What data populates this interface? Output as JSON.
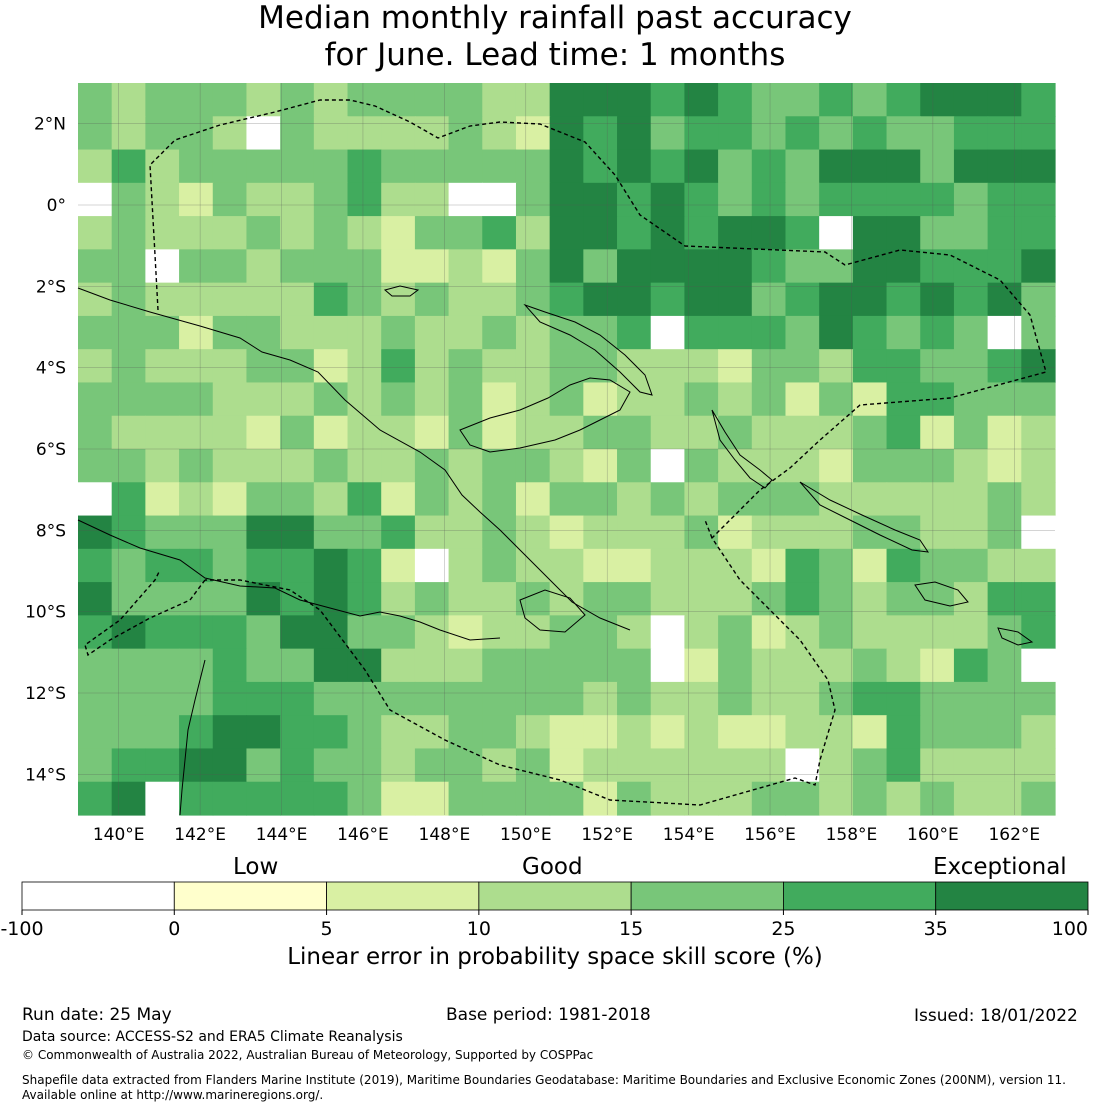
{
  "title": {
    "line1": "Median monthly rainfall past accuracy",
    "line2": "for June. Lead time: 1 months"
  },
  "map": {
    "lon_labels": [
      "140°E",
      "142°E",
      "144°E",
      "146°E",
      "148°E",
      "150°E",
      "152°E",
      "154°E",
      "156°E",
      "158°E",
      "160°E",
      "162°E"
    ],
    "lat_labels": [
      "2°N",
      "0°",
      "2°S",
      "4°S",
      "6°S",
      "8°S",
      "10°S",
      "12°S",
      "14°S"
    ],
    "lon_range": [
      139,
      163
    ],
    "lat_range": [
      -15,
      3
    ]
  },
  "legend": {
    "category_labels": [
      "Low",
      "Good",
      "Exceptional"
    ],
    "bins": [
      {
        "from": -100,
        "to": 0,
        "color": "#ffffff"
      },
      {
        "from": 0,
        "to": 5,
        "color": "#ffffcc"
      },
      {
        "from": 5,
        "to": 10,
        "color": "#d9f0a3"
      },
      {
        "from": 10,
        "to": 15,
        "color": "#addd8e"
      },
      {
        "from": 15,
        "to": 25,
        "color": "#78c679"
      },
      {
        "from": 25,
        "to": 35,
        "color": "#41ab5d"
      },
      {
        "from": 35,
        "to": 100,
        "color": "#238443"
      }
    ],
    "tick_labels": [
      "-100",
      "0",
      "5",
      "10",
      "15",
      "25",
      "35",
      "100"
    ],
    "axis_label": "Linear error in probability space skill score (%)"
  },
  "footer": {
    "run_date": "Run date: 25 May",
    "base_period": "Base period: 1981-2018",
    "issued": "Issued: 18/01/2022",
    "data_source": "Data source: ACCESS-S2 and ERA5 Climate Reanalysis",
    "copyright": "© Commonwealth of Australia 2022, Australian Bureau of Meteorology, Supported by COSPPac",
    "shapefile_line1": "Shapefile data extracted from Flanders Marine Institute (2019), Maritime Boundaries Geodatabase: Maritime Boundaries and Exclusive Economic Zones (200NM), version 11.",
    "shapefile_line2": "Available online at http://www.marineregions.org/."
  }
}
